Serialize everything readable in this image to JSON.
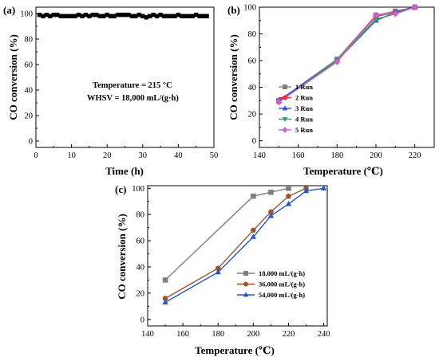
{
  "chart_data": [
    {
      "type": "scatter",
      "panel_label": "(a)",
      "xlabel": "Time (h)",
      "ylabel": "CO conversion (%)",
      "xlim": [
        0,
        50
      ],
      "ylim": [
        -5,
        105
      ],
      "xticks": [
        "0",
        "10",
        "20",
        "30",
        "40",
        "50"
      ],
      "yticks": [
        "0",
        "20",
        "40",
        "60",
        "80",
        "100"
      ],
      "annotations": [
        "Temperature = 215 °C",
        "WHSV = 18,000 mL/(g·h)"
      ],
      "series": [
        {
          "color": "#000000",
          "marker": "square",
          "x": [
            1,
            2,
            3,
            4,
            5,
            6,
            7,
            8,
            9,
            10,
            11,
            12,
            13,
            14,
            15,
            16,
            17,
            18,
            19,
            20,
            21,
            22,
            23,
            24,
            25,
            26,
            27,
            28,
            29,
            30,
            31,
            32,
            33,
            34,
            35,
            36,
            37,
            38,
            39,
            40,
            41,
            42,
            43,
            44,
            45,
            46,
            47,
            48
          ],
          "y": [
            99,
            98,
            99,
            98,
            99,
            99,
            98,
            98,
            98,
            98,
            98,
            99,
            98,
            99,
            98,
            99,
            99,
            98,
            98,
            99,
            98,
            98,
            99,
            99,
            99,
            99,
            98,
            98,
            99,
            98,
            97,
            98,
            99,
            98,
            99,
            98,
            98,
            98,
            98,
            99,
            98,
            98,
            98,
            98,
            99,
            98,
            98,
            98
          ]
        }
      ]
    },
    {
      "type": "line",
      "panel_label": "(b)",
      "xlabel": "Temperature (℃)",
      "ylabel": "CO conversion (%)",
      "xlim": [
        140,
        230
      ],
      "ylim": [
        -5,
        100
      ],
      "xticks": [
        "140",
        "160",
        "180",
        "200",
        "220"
      ],
      "yticks": [
        "0",
        "20",
        "40",
        "60",
        "80",
        "100"
      ],
      "legend_position": "lower-right",
      "x": [
        150,
        180,
        200,
        210,
        220
      ],
      "series": [
        {
          "name": "1 Run",
          "color": "#7f7f7f",
          "marker": "square",
          "values": [
            30,
            61,
            94,
            97,
            100
          ]
        },
        {
          "name": "2 Run",
          "color": "#ff2a2a",
          "marker": "circle",
          "values": [
            29,
            60,
            93,
            96,
            100
          ]
        },
        {
          "name": "3 Run",
          "color": "#1f4fff",
          "marker": "triangle-up",
          "values": [
            30,
            60,
            90,
            96,
            100
          ]
        },
        {
          "name": "4 Run",
          "color": "#16b04a",
          "marker": "triangle-down",
          "values": [
            29,
            60,
            91,
            95,
            100
          ]
        },
        {
          "name": "5 Run",
          "color": "#d45ad4",
          "marker": "diamond",
          "values": [
            29,
            59,
            94,
            95,
            100
          ]
        }
      ]
    },
    {
      "type": "line",
      "panel_label": "(c)",
      "xlabel": "Temperature (℃)",
      "ylabel": "CO conversion (%)",
      "xlim": [
        140,
        242
      ],
      "ylim": [
        -5,
        102
      ],
      "xticks": [
        "140",
        "160",
        "180",
        "200",
        "220",
        "240"
      ],
      "yticks": [
        "0",
        "20",
        "40",
        "60",
        "80",
        "100"
      ],
      "legend_position": "lower-right",
      "series": [
        {
          "name": "18,000 mL/(g·h)",
          "color": "#7f7f7f",
          "marker": "square",
          "x": [
            150,
            200,
            210,
            220
          ],
          "values": [
            30,
            94,
            97,
            100
          ]
        },
        {
          "name": "36,000 mL/(g·h)",
          "color": "#a0522d",
          "marker": "circle",
          "x": [
            150,
            180,
            200,
            210,
            220,
            230
          ],
          "values": [
            16,
            39,
            68,
            82,
            94,
            100
          ]
        },
        {
          "name": "54,000 mL/(g·h)",
          "color": "#2255dd",
          "marker": "triangle-up",
          "x": [
            150,
            180,
            200,
            210,
            220,
            230,
            240
          ],
          "values": [
            13,
            36,
            63,
            79,
            88,
            98,
            100
          ]
        }
      ]
    }
  ]
}
